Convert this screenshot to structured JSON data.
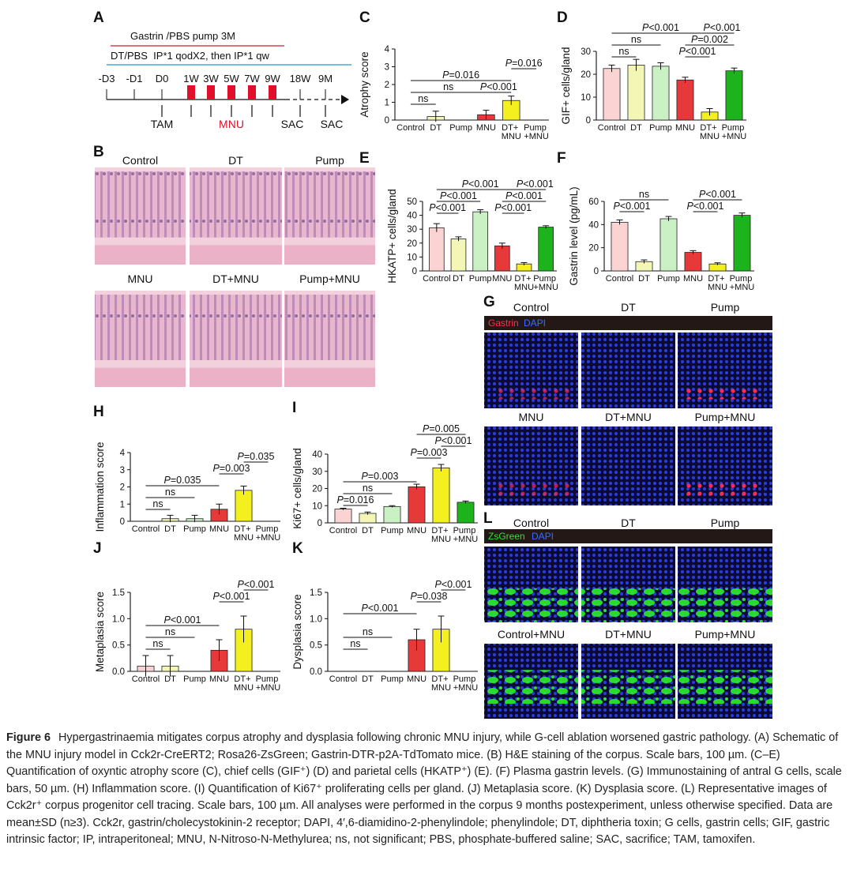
{
  "schematic": {
    "panel": "A",
    "pump": "Gastrin /PBS pump 3M",
    "injection": "DT/PBS  IP*1 qodX2, then IP*1 qw",
    "timepoints": [
      "-D3",
      "-D1",
      "D0",
      "1W",
      "3W",
      "5W",
      "7W",
      "9W",
      "18W",
      "9M"
    ],
    "labels": [
      "TAM",
      "MNU",
      "SAC",
      "SAC"
    ]
  },
  "he_images": {
    "panel": "B",
    "labels": [
      "Control",
      "DT",
      "Pump",
      "MNU",
      "DT+MNU",
      "Pump+MNU"
    ]
  },
  "gastrin_images": {
    "panel": "G",
    "stain": [
      "Gastrin",
      "DAPI"
    ],
    "labels": [
      "Control",
      "DT",
      "Pump",
      "MNU",
      "DT+MNU",
      "Pump+MNU"
    ]
  },
  "tracing_images": {
    "panel": "L",
    "stain": [
      "ZsGreen",
      "DAPI"
    ],
    "labels": [
      "Control",
      "DT",
      "Pump",
      "Control+MNU",
      "DT+MNU",
      "Pump+MNU"
    ]
  },
  "chart_data": [
    {
      "type": "bar",
      "panel": "C",
      "ylabel": "Atrophy score",
      "categories": [
        "Control",
        "DT",
        "Pump",
        "MNU",
        "DT+ MNU",
        "Pump +MNU"
      ],
      "values": [
        0,
        0.2,
        0,
        0.3,
        1.1,
        0
      ],
      "errors": [
        0,
        0.3,
        0,
        0.25,
        0.25,
        0
      ],
      "colors": [
        "#fbd3d3",
        "#f3f6b4",
        "#caf1c4",
        "#e8393a",
        "#f4ef1e",
        "#1db31d"
      ],
      "ylim": [
        0,
        4
      ],
      "yticks": [
        0,
        1,
        2,
        3,
        4
      ],
      "annotations": [
        "ns",
        "ns",
        "P=0.016",
        "P<0.001",
        "P=0.016"
      ]
    },
    {
      "type": "bar",
      "panel": "D",
      "ylabel": "GIF+ cells/gland",
      "categories": [
        "Control",
        "DT",
        "Pump",
        "MNU",
        "DT+ MNU",
        "Pump +MNU"
      ],
      "values": [
        22.5,
        24,
        23.5,
        17.5,
        3.5,
        21.5
      ],
      "errors": [
        1.5,
        2.5,
        1.5,
        1.2,
        1.5,
        1.2
      ],
      "colors": [
        "#fbd3d3",
        "#f3f6b4",
        "#caf1c4",
        "#e8393a",
        "#f4ef1e",
        "#1db31d"
      ],
      "ylim": [
        0,
        30
      ],
      "yticks": [
        0,
        10,
        20,
        30
      ],
      "annotations": [
        "P<0.001",
        "ns",
        "ns",
        "P<0.001",
        "P=0.002",
        "P<0.001"
      ]
    },
    {
      "type": "bar",
      "panel": "E",
      "ylabel": "HKATP+ cells/gland",
      "categories": [
        "Control",
        "DT",
        "Pump",
        "MNU",
        "DT+ MNU",
        "Pump +MNU"
      ],
      "values": [
        31,
        23,
        42.5,
        18,
        5,
        31.5
      ],
      "errors": [
        3,
        1.5,
        1.5,
        2,
        1,
        1
      ],
      "colors": [
        "#fbd3d3",
        "#f3f6b4",
        "#caf1c4",
        "#e8393a",
        "#f4ef1e",
        "#1db31d"
      ],
      "ylim": [
        0,
        50
      ],
      "yticks": [
        0,
        10,
        20,
        30,
        40,
        50
      ],
      "annotations": [
        "P<0.001",
        "P<0.001",
        "P<0.001",
        "P<0.001",
        "P<0.001",
        "P<0.001"
      ]
    },
    {
      "type": "bar",
      "panel": "F",
      "ylabel": "Gastrin level (pg/mL)",
      "categories": [
        "Control",
        "DT",
        "Pump",
        "MNU",
        "DT+ MNU",
        "Pump +MNU"
      ],
      "values": [
        42,
        8,
        45,
        16,
        6,
        48
      ],
      "errors": [
        2,
        1.5,
        2,
        1.5,
        1,
        2
      ],
      "colors": [
        "#fbd3d3",
        "#f3f6b4",
        "#caf1c4",
        "#e8393a",
        "#f4ef1e",
        "#1db31d"
      ],
      "ylim": [
        0,
        60
      ],
      "yticks": [
        0,
        20,
        40,
        60
      ],
      "annotations": [
        "ns",
        "P<0.001",
        "P<0.001",
        "P<0.001"
      ]
    },
    {
      "type": "bar",
      "panel": "H",
      "ylabel": "Inflammation score",
      "categories": [
        "Control",
        "DT",
        "Pump",
        "MNU",
        "DT+ MNU",
        "Pump +MNU"
      ],
      "values": [
        0,
        0.15,
        0.15,
        0.7,
        1.8,
        0
      ],
      "errors": [
        0,
        0.2,
        0.2,
        0.3,
        0.25,
        0
      ],
      "colors": [
        "#fbd3d3",
        "#f3f6b4",
        "#caf1c4",
        "#e8393a",
        "#f4ef1e",
        "#1db31d"
      ],
      "ylim": [
        0,
        4
      ],
      "yticks": [
        0,
        1,
        2,
        3,
        4
      ],
      "annotations": [
        "P=0.035",
        "P=0.003",
        "P=0.035",
        "ns",
        "ns"
      ]
    },
    {
      "type": "bar",
      "panel": "I",
      "ylabel": "Ki67+ cells/gland",
      "categories": [
        "Control",
        "DT",
        "Pump",
        "MNU",
        "DT+ MNU",
        "Pump +MNU"
      ],
      "values": [
        8,
        5.5,
        9.5,
        21,
        32,
        12
      ],
      "errors": [
        0.5,
        0.8,
        0.5,
        1.5,
        2,
        0.7
      ],
      "colors": [
        "#fbd3d3",
        "#f3f6b4",
        "#caf1c4",
        "#e8393a",
        "#f4ef1e",
        "#1db31d"
      ],
      "ylim": [
        0,
        40
      ],
      "yticks": [
        0,
        10,
        20,
        30,
        40
      ],
      "annotations": [
        "P=0.005",
        "P<0.001",
        "P=0.003",
        "P=0.003",
        "ns",
        "P=0.016"
      ]
    },
    {
      "type": "bar",
      "panel": "J",
      "ylabel": "Metaplasia score",
      "categories": [
        "Control",
        "DT",
        "Pump",
        "MNU",
        "DT+ MNU",
        "Pump +MNU"
      ],
      "values": [
        0.1,
        0.1,
        0,
        0.4,
        0.8,
        0
      ],
      "errors": [
        0.2,
        0.2,
        0,
        0.2,
        0.25,
        0
      ],
      "colors": [
        "#fbd3d3",
        "#f3f6b4",
        "#caf1c4",
        "#e8393a",
        "#f4ef1e",
        "#1db31d"
      ],
      "ylim": [
        0,
        1.5
      ],
      "yticks": [
        {
          "value": 0,
          "label": "0.0"
        },
        0.5,
        {
          "value": 1,
          "label": "1.0"
        },
        1.5
      ],
      "annotations": [
        "P<0.001",
        "P<0.001",
        "P<0.001",
        "ns",
        "ns"
      ]
    },
    {
      "type": "bar",
      "panel": "K",
      "ylabel": "Dysplasia score",
      "categories": [
        "Control",
        "DT",
        "Pump",
        "MNU",
        "DT+ MNU",
        "Pump +MNU"
      ],
      "values": [
        0,
        0,
        0,
        0.6,
        0.8,
        0
      ],
      "errors": [
        0,
        0,
        0,
        0.2,
        0.25,
        0
      ],
      "colors": [
        "#fbd3d3",
        "#f3f6b4",
        "#caf1c4",
        "#e8393a",
        "#f4ef1e",
        "#1db31d"
      ],
      "ylim": [
        0,
        1.5
      ],
      "yticks": [
        {
          "value": 0,
          "label": "0.0"
        },
        0.5,
        {
          "value": 1,
          "label": "1.0"
        },
        1.5
      ],
      "annotations": [
        "P<0.001",
        "P=0.038",
        "P<0.001",
        "ns",
        "ns"
      ]
    }
  ],
  "caption": {
    "label": "Figure 6",
    "text": "Hypergastrinaemia mitigates corpus atrophy and dysplasia following chronic MNU injury, while G-cell ablation worsened gastric pathology. (A) Schematic of the MNU injury model in Cck2r-CreERT2; Rosa26-ZsGreen; Gastrin-DTR-p2A-TdTomato mice. (B) H&E staining of the corpus. Scale bars, 100 µm. (C–E)  Quantification of oxyntic atrophy score (C), chief cells (GIF⁺) (D) and parietal cells (HKATP⁺) (E). (F) Plasma gastrin levels. (G) Immunostaining of antral G cells, scale bars, 50 µm. (H) Inflammation score. (I) Quantification of Ki67⁺ proliferating cells per gland. (J) Metaplasia score. (K) Dysplasia score. (L) Representative images of Cck2r⁺ corpus progenitor cell tracing. Scale bars, 100 µm. All analyses were performed in the corpus 9 months postexperiment, unless otherwise specified. Data are mean±SD (n≥3). Cck2r, gastrin/cholecystokinin-2 receptor; DAPI, 4′,6-diamidino-2-phenylindole; phenylindole; DT, diphtheria toxin; G cells, gastrin cells; GIF, gastric intrinsic factor; IP, intraperitoneal; MNU, N-Nitroso-N-Methylurea; ns, not significant; PBS, phosphate-buffered saline; SAC, sacrifice; TAM, tamoxifen."
  }
}
